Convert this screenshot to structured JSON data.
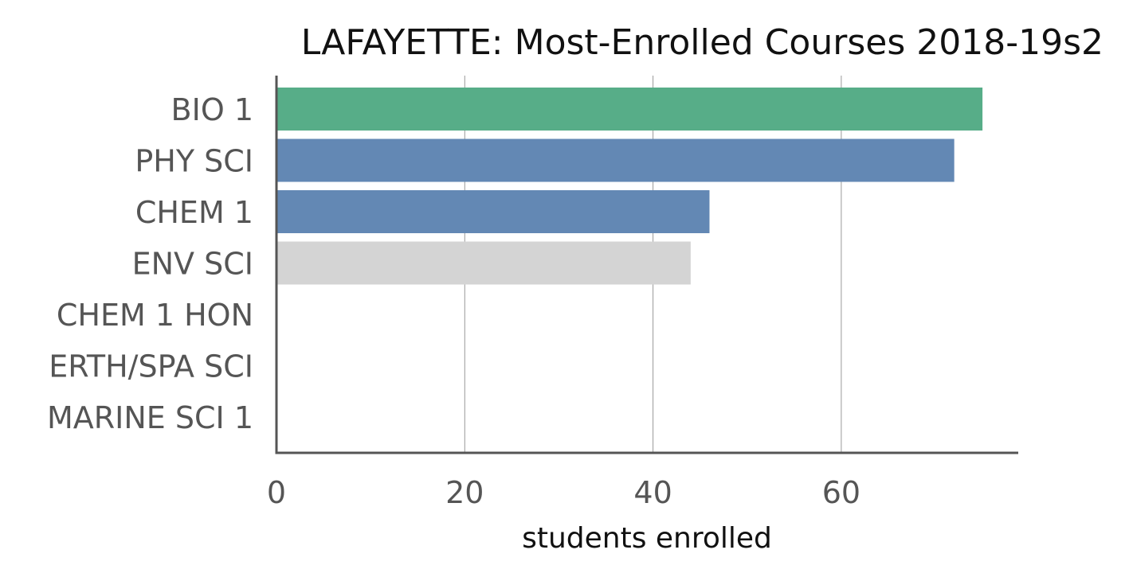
{
  "chart_data": {
    "type": "bar",
    "orientation": "horizontal",
    "title": "LAFAYETTE: Most-Enrolled Courses 2018-19s2",
    "xlabel": "students enrolled",
    "ylabel": "",
    "xlim": [
      0,
      78.8
    ],
    "xticks": [
      0,
      20,
      40,
      60
    ],
    "xtick_labels": [
      "0",
      "20",
      "40",
      "60"
    ],
    "grid": "vertical",
    "legend": "none",
    "categories": [
      "BIO 1",
      "PHY SCI",
      "CHEM 1",
      "ENV SCI",
      "CHEM 1 HON",
      "ERTH/SPA SCI",
      "MARINE SCI 1"
    ],
    "values": [
      75,
      72,
      46,
      44,
      0,
      0,
      0
    ],
    "colors": [
      "#57ad88",
      "#6388b4",
      "#6388b4",
      "#d4d4d4",
      "#d4d4d4",
      "#d4d4d4",
      "#d4d4d4"
    ]
  },
  "style": {
    "axis_color": "#555555",
    "text_color": "#555555",
    "title_color": "#111111"
  }
}
